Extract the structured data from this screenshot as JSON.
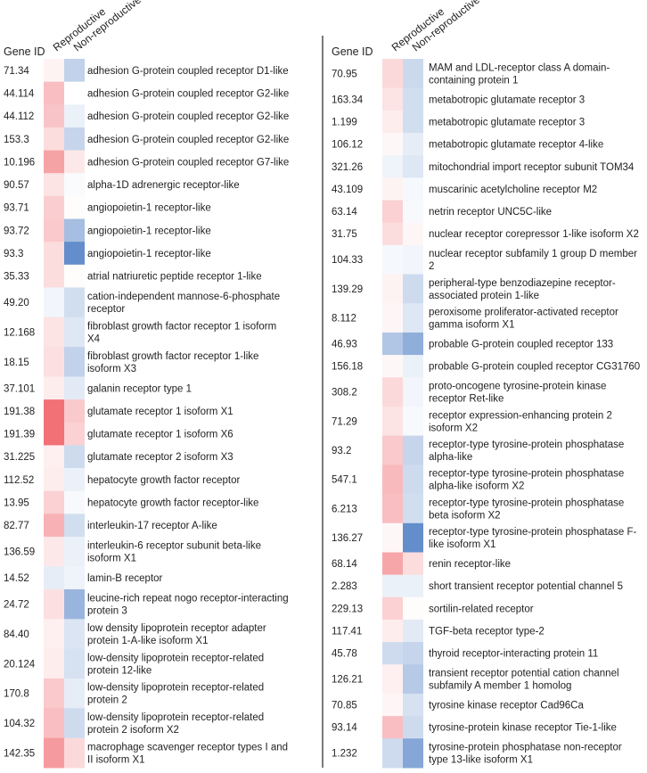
{
  "chart_data": {
    "type": "heatmap",
    "columns": [
      "Reproductive",
      "Non-reproductive"
    ],
    "row_header": "Gene ID",
    "color_scale": {
      "high": "#f0656b",
      "mid": "#ffffff",
      "low": "#5c88c8"
    },
    "panels": [
      {
        "rows": [
          {
            "id": "71.34",
            "gene": [
              "adhesion G-protein coupled receptor D1-like"
            ],
            "values": [
              0.08,
              -0.38
            ]
          },
          {
            "id": "44.114",
            "gene": [
              "adhesion G-protein coupled receptor G2-like"
            ],
            "values": [
              0.42,
              0.0
            ]
          },
          {
            "id": "44.112",
            "gene": [
              "adhesion G-protein coupled receptor G2-like"
            ],
            "values": [
              0.38,
              -0.12
            ]
          },
          {
            "id": "153.3",
            "gene": [
              "adhesion G-protein coupled receptor G2-like"
            ],
            "values": [
              0.22,
              -0.35
            ]
          },
          {
            "id": "10.196",
            "gene": [
              "adhesion G-protein coupled receptor G7-like"
            ],
            "values": [
              0.6,
              0.15
            ]
          },
          {
            "id": "90.57",
            "gene": [
              "alpha-1D adrenergic receptor-like"
            ],
            "values": [
              0.18,
              -0.03
            ]
          },
          {
            "id": "93.71",
            "gene": [
              "angiopoietin-1 receptor-like"
            ],
            "values": [
              0.32,
              0.02
            ]
          },
          {
            "id": "93.72",
            "gene": [
              "angiopoietin-1 receptor-like"
            ],
            "values": [
              0.35,
              -0.55
            ]
          },
          {
            "id": "93.3",
            "gene": [
              "angiopoietin-1 receptor-like"
            ],
            "values": [
              0.22,
              -0.95
            ]
          },
          {
            "id": "35.33",
            "gene": [
              "atrial natriuretic peptide receptor 1-like"
            ],
            "values": [
              0.22,
              0.02
            ]
          },
          {
            "id": "49.20",
            "gene": [
              "cation-independent mannose-6-phosphate",
              "receptor"
            ],
            "values": [
              -0.08,
              -0.28
            ]
          },
          {
            "id": "12.168",
            "gene": [
              "fibroblast growth factor receptor 1 isoform",
              "X4"
            ],
            "values": [
              0.18,
              -0.2
            ]
          },
          {
            "id": "18.15",
            "gene": [
              "fibroblast growth factor receptor 1-like",
              "isoform X3"
            ],
            "values": [
              0.2,
              -0.38
            ]
          },
          {
            "id": "37.101",
            "gene": [
              "galanin receptor type 1"
            ],
            "values": [
              0.12,
              -0.18
            ]
          },
          {
            "id": "191.38",
            "gene": [
              "glutamate receptor 1 isoform X1"
            ],
            "values": [
              0.92,
              0.35
            ]
          },
          {
            "id": "191.39",
            "gene": [
              "glutamate receptor 1 isoform X6"
            ],
            "values": [
              0.92,
              0.3
            ]
          },
          {
            "id": "31.225",
            "gene": [
              "glutamate receptor 2 isoform X3"
            ],
            "values": [
              0.1,
              -0.3
            ]
          },
          {
            "id": "112.52",
            "gene": [
              "hepatocyte growth factor receptor"
            ],
            "values": [
              0.12,
              -0.12
            ]
          },
          {
            "id": "13.95",
            "gene": [
              "hepatocyte growth factor receptor-like"
            ],
            "values": [
              0.3,
              -0.05
            ]
          },
          {
            "id": "82.77",
            "gene": [
              "interleukin-17 receptor A-like"
            ],
            "values": [
              0.5,
              -0.28
            ]
          },
          {
            "id": "136.59",
            "gene": [
              "interleukin-6 receptor subunit beta-like",
              "isoform X1"
            ],
            "values": [
              0.15,
              -0.12
            ]
          },
          {
            "id": "14.52",
            "gene": [
              "lamin-B receptor"
            ],
            "values": [
              -0.15,
              -0.1
            ]
          },
          {
            "id": "24.72",
            "gene": [
              "leucine-rich repeat nogo receptor-interacting",
              "protein 3"
            ],
            "values": [
              0.2,
              -0.62
            ]
          },
          {
            "id": "84.40",
            "gene": [
              "low density lipoprotein receptor adapter",
              "protein 1-A-like isoform X1"
            ],
            "values": [
              0.1,
              -0.22
            ]
          },
          {
            "id": "20.124",
            "gene": [
              "low-density lipoprotein receptor-related",
              "protein 12-like"
            ],
            "values": [
              0.12,
              -0.25
            ]
          },
          {
            "id": "170.8",
            "gene": [
              "low-density lipoprotein receptor-related",
              "protein 2"
            ],
            "values": [
              0.35,
              -0.15
            ]
          },
          {
            "id": "104.32",
            "gene": [
              "low-density lipoprotein receptor-related",
              "protein 2 isoform X2"
            ],
            "values": [
              0.42,
              -0.3
            ]
          },
          {
            "id": "142.35",
            "gene": [
              "macrophage scavenger receptor types I and",
              "II isoform X1"
            ],
            "values": [
              0.65,
              0.25
            ]
          }
        ]
      },
      {
        "rows": [
          {
            "id": "70.95",
            "gene": [
              "MAM and LDL-receptor class A domain-",
              "containing protein 1"
            ],
            "values": [
              0.25,
              -0.32
            ]
          },
          {
            "id": "163.34",
            "gene": [
              "metabotropic glutamate receptor 3"
            ],
            "values": [
              0.18,
              -0.28
            ]
          },
          {
            "id": "1.199",
            "gene": [
              "metabotropic glutamate receptor 3"
            ],
            "values": [
              0.12,
              -0.28
            ]
          },
          {
            "id": "106.12",
            "gene": [
              "metabotropic glutamate receptor 4-like"
            ],
            "values": [
              0.05,
              -0.15
            ]
          },
          {
            "id": "321.26",
            "gene": [
              "mitochondrial import receptor subunit TOM34"
            ],
            "values": [
              -0.1,
              -0.2
            ]
          },
          {
            "id": "43.109",
            "gene": [
              "muscarinic acetylcholine receptor M2"
            ],
            "values": [
              0.08,
              -0.06
            ]
          },
          {
            "id": "63.14",
            "gene": [
              "netrin receptor UNC5C-like"
            ],
            "values": [
              0.3,
              -0.05
            ]
          },
          {
            "id": "31.75",
            "gene": [
              "nuclear receptor corepressor 1-like isoform X2"
            ],
            "values": [
              0.22,
              0.06
            ]
          },
          {
            "id": "104.33",
            "gene": [
              "nuclear receptor subfamily 1 group D member",
              "2"
            ],
            "values": [
              -0.06,
              -0.08
            ]
          },
          {
            "id": "139.29",
            "gene": [
              "peripheral-type benzodiazepine receptor-",
              "associated protein 1-like"
            ],
            "values": [
              0.08,
              -0.3
            ]
          },
          {
            "id": "8.112",
            "gene": [
              "peroxisome proliferator-activated receptor",
              "gamma isoform X1"
            ],
            "values": [
              0.06,
              -0.2
            ]
          },
          {
            "id": "46.93",
            "gene": [
              "probable G-protein coupled receptor 133"
            ],
            "values": [
              -0.48,
              -0.68
            ]
          },
          {
            "id": "156.18",
            "gene": [
              "probable G-protein coupled receptor CG31760"
            ],
            "values": [
              0.05,
              -0.12
            ]
          },
          {
            "id": "308.2",
            "gene": [
              "proto-oncogene tyrosine-protein kinase",
              "receptor Ret-like"
            ],
            "values": [
              0.25,
              -0.08
            ]
          },
          {
            "id": "71.29",
            "gene": [
              "receptor expression-enhancing protein 2",
              "isoform X2"
            ],
            "values": [
              0.18,
              -0.05
            ]
          },
          {
            "id": "93.2",
            "gene": [
              "receptor-type tyrosine-protein phosphatase",
              "alpha-like"
            ],
            "values": [
              0.35,
              -0.35
            ]
          },
          {
            "id": "547.1",
            "gene": [
              "receptor-type tyrosine-protein phosphatase",
              "alpha-like isoform X2"
            ],
            "values": [
              0.45,
              -0.3
            ]
          },
          {
            "id": "6.213",
            "gene": [
              "receptor-type tyrosine-protein phosphatase",
              "beta isoform X2"
            ],
            "values": [
              0.42,
              -0.28
            ]
          },
          {
            "id": "136.27",
            "gene": [
              "receptor-type tyrosine-protein phosphatase F-",
              "like isoform X1"
            ],
            "values": [
              0.05,
              -0.95
            ]
          },
          {
            "id": "68.14",
            "gene": [
              "renin receptor-like"
            ],
            "values": [
              0.58,
              0.22
            ]
          },
          {
            "id": "2.283",
            "gene": [
              "short transient receptor potential channel 5"
            ],
            "values": [
              -0.12,
              -0.12
            ]
          },
          {
            "id": "229.13",
            "gene": [
              "sortilin-related receptor"
            ],
            "values": [
              0.3,
              0.02
            ]
          },
          {
            "id": "117.41",
            "gene": [
              "TGF-beta receptor type-2"
            ],
            "values": [
              0.12,
              -0.18
            ]
          },
          {
            "id": "45.78",
            "gene": [
              "thyroid receptor-interacting protein 11"
            ],
            "values": [
              -0.3,
              -0.35
            ]
          },
          {
            "id": "126.21",
            "gene": [
              "transient receptor potential cation channel",
              "subfamily A member 1 homolog"
            ],
            "values": [
              0.1,
              -0.45
            ]
          },
          {
            "id": "70.85",
            "gene": [
              "tyrosine kinase receptor Cad96Ca"
            ],
            "values": [
              0.06,
              -0.25
            ]
          },
          {
            "id": "93.14",
            "gene": [
              "tyrosine-protein kinase receptor Tie-1-like"
            ],
            "values": [
              0.42,
              -0.3
            ]
          },
          {
            "id": "1.232",
            "gene": [
              "tyrosine-protein phosphatase non-receptor",
              "type 13-like isoform X1"
            ],
            "values": [
              -0.3,
              -0.75
            ]
          }
        ]
      }
    ]
  }
}
